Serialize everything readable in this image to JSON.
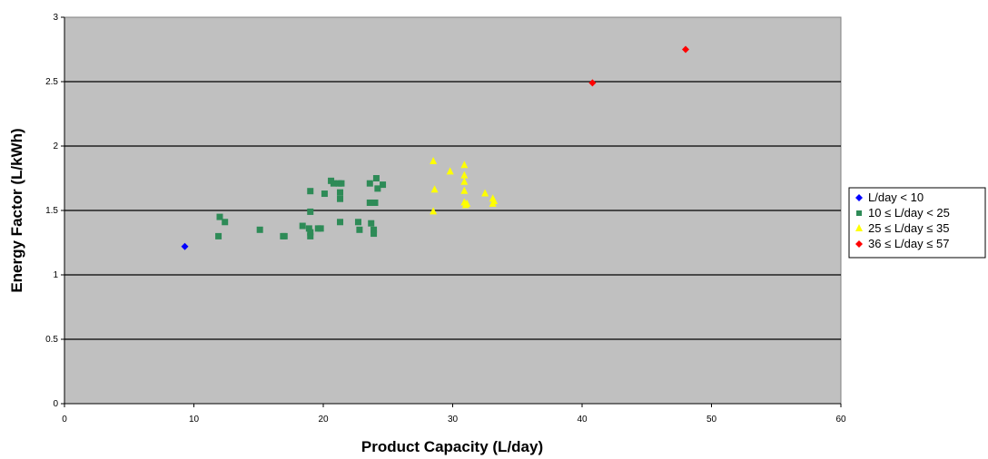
{
  "chart_data": {
    "type": "scatter",
    "title": "",
    "xlabel": "Product Capacity (L/day)",
    "ylabel": "Energy Factor (L/kWh)",
    "xlim": [
      0,
      60
    ],
    "ylim": [
      0,
      3
    ],
    "x_ticks": [
      "0",
      "10",
      "20",
      "30",
      "40",
      "50",
      "60"
    ],
    "y_ticks": [
      "0",
      "0.5",
      "1",
      "1.5",
      "2",
      "2.5",
      "3"
    ],
    "grid": "horizontal major gridlines",
    "plot_background": "#c0c0c0",
    "legend_position": "right",
    "series": [
      {
        "name": "L/day < 10",
        "marker": "diamond",
        "color": "#0000ff",
        "points": [
          [
            9.3,
            1.22
          ]
        ]
      },
      {
        "name": "10 ≤ L/day < 25",
        "marker": "square",
        "color": "#2e8b57",
        "points": [
          [
            11.9,
            1.3
          ],
          [
            12.0,
            1.45
          ],
          [
            12.4,
            1.41
          ],
          [
            15.1,
            1.35
          ],
          [
            16.9,
            1.3
          ],
          [
            17.0,
            1.3
          ],
          [
            18.4,
            1.38
          ],
          [
            18.9,
            1.36
          ],
          [
            19.0,
            1.33
          ],
          [
            19.0,
            1.3
          ],
          [
            19.0,
            1.49
          ],
          [
            19.0,
            1.65
          ],
          [
            19.6,
            1.36
          ],
          [
            19.8,
            1.36
          ],
          [
            20.1,
            1.63
          ],
          [
            20.6,
            1.73
          ],
          [
            20.8,
            1.71
          ],
          [
            21.2,
            1.71
          ],
          [
            21.4,
            1.71
          ],
          [
            21.3,
            1.64
          ],
          [
            21.3,
            1.59
          ],
          [
            21.3,
            1.41
          ],
          [
            22.7,
            1.41
          ],
          [
            22.8,
            1.35
          ],
          [
            23.6,
            1.71
          ],
          [
            23.6,
            1.56
          ],
          [
            23.7,
            1.4
          ],
          [
            23.9,
            1.35
          ],
          [
            23.9,
            1.32
          ],
          [
            24.0,
            1.56
          ],
          [
            24.1,
            1.75
          ],
          [
            24.2,
            1.67
          ],
          [
            24.6,
            1.7
          ]
        ]
      },
      {
        "name": "25 ≤ L/day ≤ 35",
        "marker": "triangle",
        "color": "#ffff00",
        "points": [
          [
            28.5,
            1.88
          ],
          [
            28.6,
            1.66
          ],
          [
            28.5,
            1.49
          ],
          [
            29.8,
            1.8
          ],
          [
            30.9,
            1.85
          ],
          [
            30.9,
            1.77
          ],
          [
            30.9,
            1.72
          ],
          [
            30.9,
            1.65
          ],
          [
            30.9,
            1.56
          ],
          [
            31.0,
            1.54
          ],
          [
            31.1,
            1.55
          ],
          [
            32.5,
            1.63
          ],
          [
            33.1,
            1.59
          ],
          [
            33.1,
            1.55
          ],
          [
            33.2,
            1.57
          ]
        ]
      },
      {
        "name": "36 ≤ L/day ≤ 57",
        "marker": "diamond",
        "color": "#ff0000",
        "points": [
          [
            40.8,
            2.49
          ],
          [
            48.0,
            2.75
          ]
        ]
      }
    ]
  }
}
